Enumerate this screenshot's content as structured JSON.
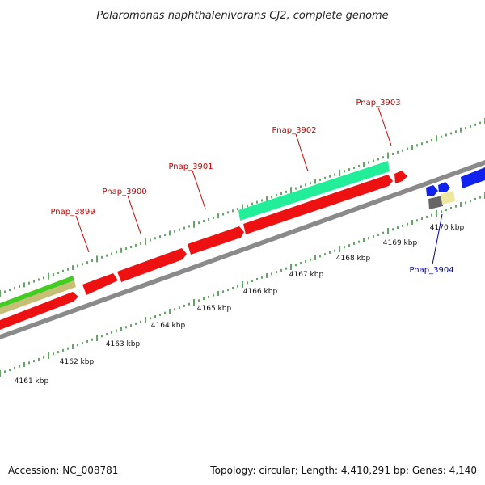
{
  "title": "Polaromonas naphthalenivorans CJ2, complete genome",
  "footer": {
    "accession": "Accession: NC_008781",
    "summary": "Topology: circular; Length: 4,410,291 bp; Genes: 4,140"
  },
  "ruler_labels": [
    "4161 kbp",
    "4162 kbp",
    "4163 kbp",
    "4164 kbp",
    "4165 kbp",
    "4166 kbp",
    "4167 kbp",
    "4168 kbp",
    "4169 kbp",
    "4170 kbp"
  ],
  "gene_labels": [
    {
      "text": "Pnap_3899",
      "color": "#cc0000"
    },
    {
      "text": "Pnap_3900",
      "color": "#cc0000"
    },
    {
      "text": "Pnap_3901",
      "color": "#cc0000"
    },
    {
      "text": "Pnap_3902",
      "color": "#cc0000"
    },
    {
      "text": "Pnap_3903",
      "color": "#cc0000"
    },
    {
      "text": "Pnap_3904",
      "color": "#0000aa"
    }
  ],
  "colors": {
    "backbone": "#8a8a8a",
    "forward_gene": "#ee1111",
    "reverse_gene": "#1122ee",
    "tick": "#117711",
    "cyan_feature": "#22ee99",
    "green_feature": "#44cc22",
    "tan_feature": "#c8bf77",
    "gray_feature": "#666666",
    "yellow_feature": "#eee6a0"
  }
}
